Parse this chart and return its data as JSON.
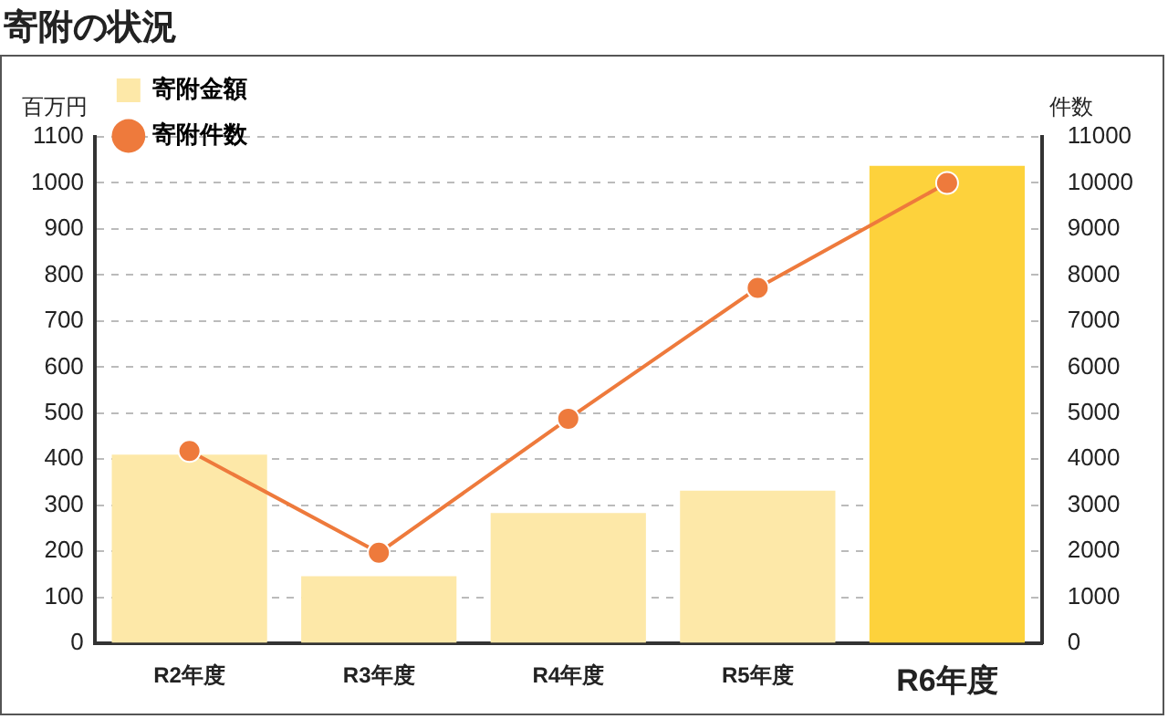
{
  "chart_data": {
    "type": "bar",
    "title": "寄附の状況",
    "ylabel": "百万円",
    "y2label": "件数",
    "categories": [
      "R2年度",
      "R3年度",
      "R4年度",
      "R5年度",
      "R6年度"
    ],
    "series": [
      {
        "name": "寄附金額",
        "colors": [
          "#fde8a8",
          "#fde8a8",
          "#fde8a8",
          "#fde8a8",
          "#fdd23c"
        ],
        "values": [
          410,
          146,
          283,
          332,
          1037
        ]
      },
      {
        "name": "寄附件数",
        "type": "line",
        "axis": "y2",
        "color": "#ee7a3c",
        "values": [
          4180,
          1970,
          4880,
          7720,
          10000
        ]
      }
    ],
    "ylim": [
      0,
      1100
    ],
    "yticks": [
      0,
      100,
      200,
      300,
      400,
      500,
      600,
      700,
      800,
      900,
      1000,
      1100
    ],
    "y2lim": [
      0,
      11000
    ],
    "y2ticks": [
      0,
      1000,
      2000,
      3000,
      4000,
      5000,
      6000,
      7000,
      8000,
      9000,
      10000,
      11000
    ],
    "grid": "y",
    "legend": "top left",
    "marker": "circle",
    "line_style": "solid"
  }
}
